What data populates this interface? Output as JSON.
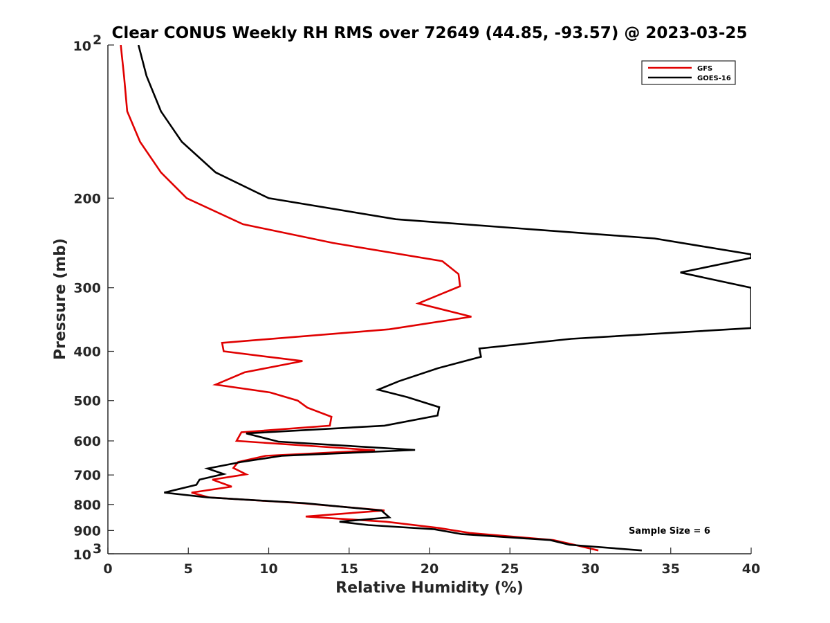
{
  "chart_data": {
    "type": "line",
    "title": "Clear CONUS Weekly RH RMS over 72649 (44.85, -93.57) @ 2023-03-25",
    "xlabel": "Relative Humidity (%)",
    "ylabel": "Pressure (mb)",
    "xlim": [
      0,
      40
    ],
    "ylim": [
      100,
      1000
    ],
    "yscale": "log",
    "y_reversed": true,
    "xticks": [
      "0",
      "5",
      "10",
      "15",
      "20",
      "25",
      "30",
      "35",
      "40"
    ],
    "yticks": [
      {
        "value": 100,
        "base": "10",
        "exp": "2"
      },
      {
        "value": 200,
        "label": "200"
      },
      {
        "value": 300,
        "label": "300"
      },
      {
        "value": 400,
        "label": "400"
      },
      {
        "value": 500,
        "label": "500"
      },
      {
        "value": 600,
        "label": "600"
      },
      {
        "value": 700,
        "label": "700"
      },
      {
        "value": 800,
        "label": "800"
      },
      {
        "value": 900,
        "label": "900"
      },
      {
        "value": 1000,
        "base": "10",
        "exp": "3"
      }
    ],
    "grid": false,
    "legend_position": "top-right",
    "annotation": "Sample Size = 6",
    "series": [
      {
        "name": "GFS",
        "color": "#e00000",
        "points": [
          [
            0.8,
            100
          ],
          [
            1.0,
            115
          ],
          [
            1.2,
            135
          ],
          [
            2.0,
            155
          ],
          [
            3.3,
            178
          ],
          [
            4.9,
            200
          ],
          [
            8.4,
            225
          ],
          [
            14.0,
            245
          ],
          [
            20.8,
            266
          ],
          [
            21.8,
            282
          ],
          [
            21.9,
            298
          ],
          [
            19.3,
            322
          ],
          [
            22.6,
            342
          ],
          [
            17.5,
            362
          ],
          [
            7.1,
            385
          ],
          [
            7.2,
            400
          ],
          [
            12.1,
            418
          ],
          [
            8.5,
            440
          ],
          [
            6.7,
            465
          ],
          [
            10.1,
            482
          ],
          [
            11.8,
            500
          ],
          [
            12.4,
            516
          ],
          [
            13.9,
            538
          ],
          [
            13.8,
            560
          ],
          [
            8.3,
            577
          ],
          [
            8.0,
            600
          ],
          [
            16.6,
            626
          ],
          [
            9.8,
            642
          ],
          [
            8.1,
            660
          ],
          [
            7.8,
            678
          ],
          [
            8.6,
            698
          ],
          [
            6.5,
            715
          ],
          [
            7.7,
            738
          ],
          [
            5.2,
            758
          ],
          [
            6.3,
            775
          ],
          [
            12.0,
            795
          ],
          [
            17.2,
            822
          ],
          [
            12.3,
            845
          ],
          [
            17.3,
            865
          ],
          [
            20.6,
            890
          ],
          [
            22.5,
            910
          ],
          [
            27.7,
            940
          ],
          [
            29.0,
            960
          ],
          [
            30.5,
            985
          ]
        ]
      },
      {
        "name": "GOES-16",
        "color": "#000000",
        "points": [
          [
            1.9,
            100
          ],
          [
            2.4,
            115
          ],
          [
            3.3,
            135
          ],
          [
            4.6,
            155
          ],
          [
            6.7,
            178
          ],
          [
            10.0,
            200
          ],
          [
            17.9,
            220
          ],
          [
            34.0,
            240
          ],
          [
            40.0,
            258
          ],
          [
            40.0,
            262
          ],
          [
            35.6,
            280
          ],
          [
            40.0,
            300
          ],
          [
            40.0,
            360
          ],
          [
            28.8,
            378
          ],
          [
            23.1,
            395
          ],
          [
            23.2,
            410
          ],
          [
            20.5,
            432
          ],
          [
            18.1,
            458
          ],
          [
            16.8,
            476
          ],
          [
            18.6,
            492
          ],
          [
            20.6,
            515
          ],
          [
            20.5,
            535
          ],
          [
            17.2,
            560
          ],
          [
            8.6,
            580
          ],
          [
            10.6,
            602
          ],
          [
            19.1,
            625
          ],
          [
            10.8,
            642
          ],
          [
            8.3,
            660
          ],
          [
            6.2,
            680
          ],
          [
            7.2,
            697
          ],
          [
            5.7,
            715
          ],
          [
            5.5,
            732
          ],
          [
            3.5,
            758
          ],
          [
            6.2,
            775
          ],
          [
            12.2,
            795
          ],
          [
            17.0,
            822
          ],
          [
            17.5,
            848
          ],
          [
            14.4,
            865
          ],
          [
            16.2,
            878
          ],
          [
            20.3,
            895
          ],
          [
            22.0,
            915
          ],
          [
            27.5,
            940
          ],
          [
            28.7,
            960
          ],
          [
            33.2,
            985
          ]
        ]
      }
    ]
  }
}
